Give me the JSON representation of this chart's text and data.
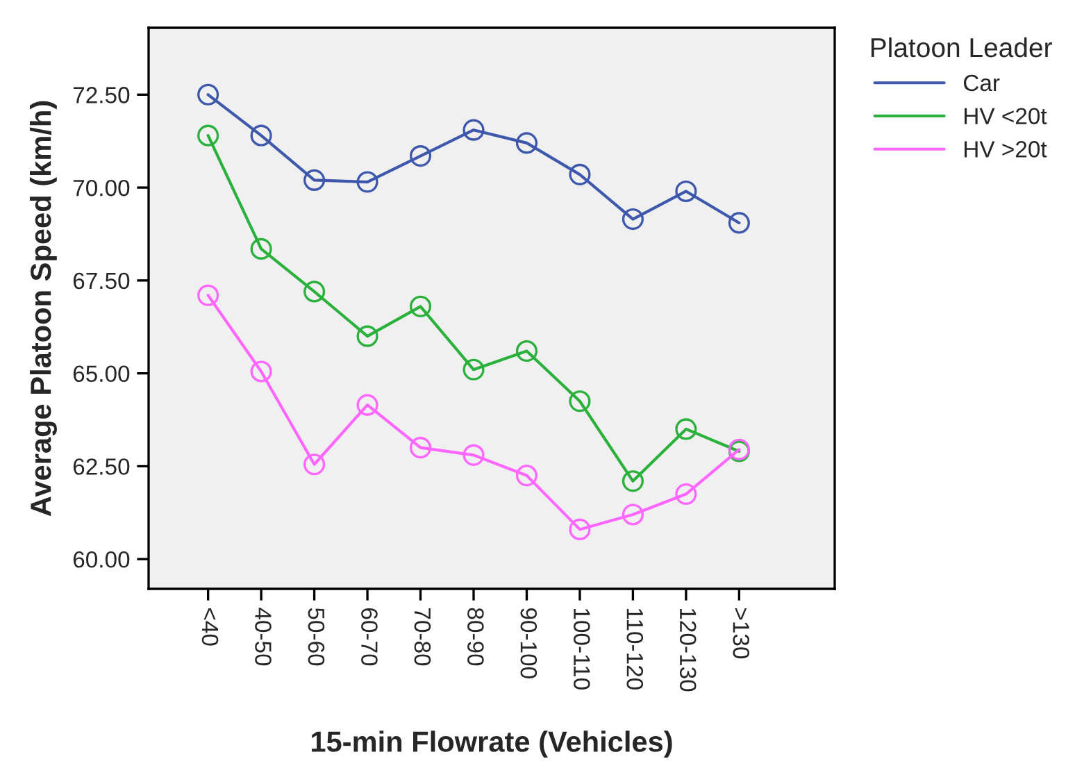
{
  "chart_data": {
    "type": "line",
    "xlabel": "15-min Flowrate (Vehicles)",
    "ylabel": "Average Platoon Speed (km/h)",
    "legend_title": "Platoon Leader",
    "categories": [
      "<40",
      "40-50",
      "50-60",
      "60-70",
      "70-80",
      "80-90",
      "90-100",
      "100-110",
      "110-120",
      "120-130",
      ">130"
    ],
    "series": [
      {
        "name": "Car",
        "color": "#3e58ac",
        "values": [
          72.5,
          71.4,
          70.2,
          70.15,
          70.85,
          71.55,
          71.2,
          70.35,
          69.15,
          69.9,
          69.05
        ]
      },
      {
        "name": "HV <20t",
        "color": "#2ab13c",
        "values": [
          71.4,
          68.35,
          67.2,
          66.0,
          66.8,
          65.1,
          65.6,
          64.25,
          62.1,
          63.5,
          62.9
        ]
      },
      {
        "name": "HV >20t",
        "color": "#ff66ff",
        "values": [
          67.1,
          65.05,
          62.55,
          64.15,
          63.0,
          62.8,
          62.25,
          60.8,
          61.2,
          61.75,
          62.95
        ]
      }
    ],
    "ylim": [
      59.2,
      74.3
    ],
    "yticks": [
      {
        "value": 60,
        "label": "60.00"
      },
      {
        "value": 62.5,
        "label": "62.50"
      },
      {
        "value": 65,
        "label": "65.00"
      },
      {
        "value": 67.5,
        "label": "67.50"
      },
      {
        "value": 70,
        "label": "70.00"
      },
      {
        "value": 72.5,
        "label": "72.50"
      }
    ],
    "marker": "circle",
    "line_style": "solid",
    "grid": false,
    "legend": "top right"
  }
}
